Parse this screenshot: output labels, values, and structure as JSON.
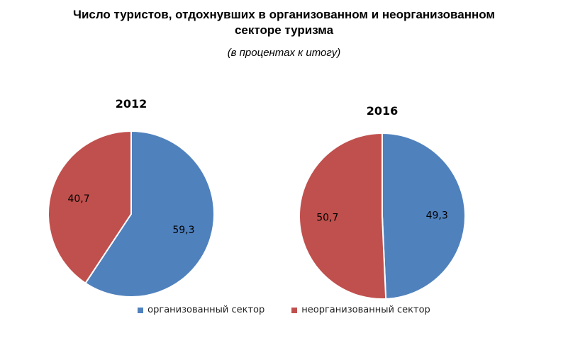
{
  "title": "Число туристов, отдохнувших в  организованном и неорганизованном\nсекторе туризма",
  "subtitle": "(в процентах к итогу)",
  "chart_data": [
    {
      "type": "pie",
      "title": "2012",
      "categories": [
        "организованный сектор",
        "неорганизованный сектор"
      ],
      "values": [
        59.3,
        40.7
      ],
      "labels": [
        "59,3",
        "40,7"
      ],
      "colors": [
        "#4f81bd",
        "#c0504d"
      ]
    },
    {
      "type": "pie",
      "title": "2016",
      "categories": [
        "организованный сектор",
        "неорганизованный сектор"
      ],
      "values": [
        49.3,
        50.7
      ],
      "labels": [
        "49,3",
        "50,7"
      ],
      "colors": [
        "#4f81bd",
        "#c0504d"
      ]
    }
  ],
  "legend": {
    "position": "bottom",
    "items": [
      {
        "label": "организованный сектор",
        "color": "#4f81bd"
      },
      {
        "label": "неорганизованный сектор",
        "color": "#c0504d"
      }
    ]
  }
}
